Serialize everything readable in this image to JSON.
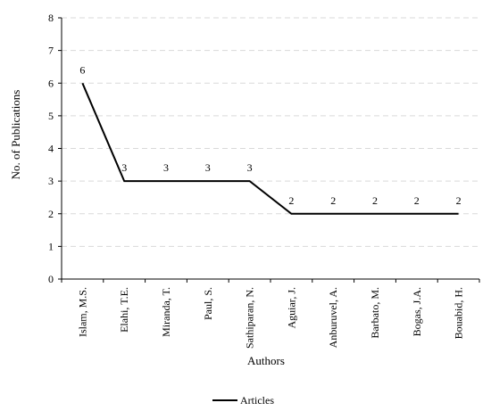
{
  "chart_data": {
    "type": "line",
    "categories": [
      "Islam, M.S.",
      "Elahi, T.E.",
      "Miranda, T.",
      "Paul, S.",
      "Sathiparan, N.",
      "Aguiar, J.",
      "Anburuvel, A.",
      "Barbato, M.",
      "Bogas, J.A.",
      "Bouabid, H."
    ],
    "series": [
      {
        "name": "Articles",
        "values": [
          6,
          3,
          3,
          3,
          3,
          2,
          2,
          2,
          2,
          2
        ],
        "color": "#000000"
      }
    ],
    "title": "",
    "xlabel": "Authors",
    "ylabel": "No. of Publications",
    "ylim": [
      0,
      8
    ],
    "yticks": [
      0,
      1,
      2,
      3,
      4,
      5,
      6,
      7,
      8
    ],
    "grid": "horizontal dashed",
    "data_labels": true,
    "legend_position": "bottom-center"
  }
}
